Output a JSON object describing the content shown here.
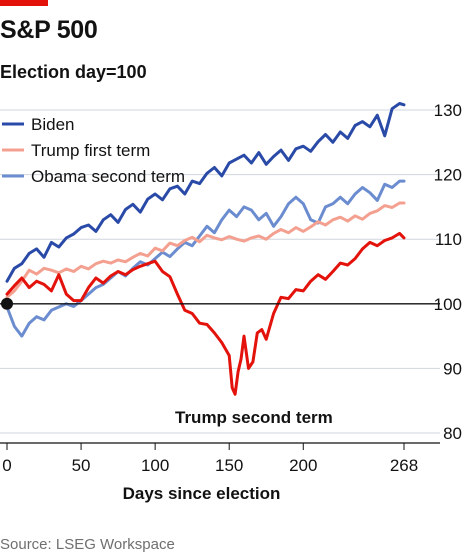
{
  "title": "S&P 500",
  "subtitle": "Election day=100",
  "source": "Source: LSEG Workspace",
  "colors": {
    "biden": "#2a4aa8",
    "trump_first": "#f4a090",
    "obama_second": "#6c8cd0",
    "trump_second": "#e3120b",
    "grid": "#cfd6dd",
    "baseline": "#121212",
    "brand_bar": "#e3120b"
  },
  "chart_data": {
    "type": "line",
    "xlabel": "Days since election",
    "ylabel": "",
    "xlim": [
      0,
      268
    ],
    "ylim": [
      80,
      132
    ],
    "x_ticks": [
      0,
      50,
      100,
      150,
      200,
      268
    ],
    "x_tick_labels": [
      "0",
      "50",
      "100",
      "150",
      "200",
      "268"
    ],
    "y_ticks": [
      80,
      90,
      100,
      110,
      120,
      130
    ],
    "y_tick_labels": [
      "80",
      "90",
      "100",
      "110",
      "120",
      "130"
    ],
    "y_axis_side": "right",
    "grid": "horizontal",
    "baseline": 100,
    "legend": "top-left",
    "annotations": [
      {
        "text": "Trump second term",
        "x": 155,
        "y": 88
      }
    ],
    "series": [
      {
        "name": "Biden",
        "color_key": "biden",
        "x": [
          0,
          5,
          10,
          15,
          20,
          25,
          30,
          35,
          40,
          45,
          50,
          55,
          60,
          65,
          70,
          75,
          80,
          85,
          90,
          95,
          100,
          105,
          110,
          115,
          120,
          125,
          130,
          135,
          140,
          145,
          150,
          155,
          160,
          165,
          170,
          175,
          180,
          185,
          190,
          195,
          200,
          205,
          210,
          215,
          220,
          225,
          230,
          235,
          240,
          245,
          250,
          255,
          260,
          265,
          268
        ],
        "y": [
          103.5,
          105.5,
          106.2,
          107.8,
          108.5,
          107.2,
          109.5,
          108.8,
          110.2,
          110.8,
          111.8,
          112.2,
          111.2,
          113.0,
          113.8,
          112.6,
          114.6,
          115.4,
          114.2,
          116.2,
          117.0,
          116.1,
          117.8,
          118.2,
          117.0,
          119.0,
          118.6,
          120.2,
          121.1,
          119.8,
          121.8,
          122.4,
          123.0,
          121.8,
          123.4,
          121.6,
          122.8,
          123.8,
          122.2,
          124.0,
          124.4,
          123.6,
          125.1,
          126.2,
          125.0,
          126.6,
          125.6,
          127.6,
          128.2,
          127.4,
          129.2,
          126.0,
          130.2,
          131.0,
          130.8
        ]
      },
      {
        "name": "Trump first term",
        "color_key": "trump_first",
        "x": [
          0,
          5,
          10,
          15,
          20,
          25,
          30,
          35,
          40,
          45,
          50,
          55,
          60,
          65,
          70,
          75,
          80,
          85,
          90,
          95,
          100,
          105,
          110,
          115,
          120,
          125,
          130,
          135,
          140,
          145,
          150,
          155,
          160,
          165,
          170,
          175,
          180,
          185,
          190,
          195,
          200,
          205,
          210,
          215,
          220,
          225,
          230,
          235,
          240,
          245,
          250,
          255,
          260,
          265,
          268
        ],
        "y": [
          101.0,
          102.0,
          103.5,
          105.2,
          104.6,
          105.5,
          105.2,
          104.8,
          105.4,
          105.0,
          105.8,
          105.4,
          106.2,
          106.6,
          106.3,
          106.8,
          106.5,
          107.2,
          107.8,
          107.4,
          108.6,
          108.2,
          109.4,
          109.0,
          109.8,
          110.3,
          109.6,
          110.6,
          110.2,
          109.9,
          110.4,
          110.0,
          109.7,
          110.2,
          110.5,
          110.0,
          110.9,
          111.5,
          111.0,
          111.8,
          111.2,
          111.9,
          112.7,
          112.2,
          113.0,
          113.4,
          112.8,
          113.6,
          113.1,
          114.0,
          114.4,
          115.2,
          114.9,
          115.6,
          115.6
        ]
      },
      {
        "name": "Obama second term",
        "color_key": "obama_second",
        "x": [
          0,
          5,
          10,
          15,
          20,
          25,
          30,
          35,
          40,
          45,
          50,
          55,
          60,
          65,
          70,
          75,
          80,
          85,
          90,
          95,
          100,
          105,
          110,
          115,
          120,
          125,
          130,
          135,
          140,
          145,
          150,
          155,
          160,
          165,
          170,
          175,
          180,
          185,
          190,
          195,
          200,
          205,
          210,
          215,
          220,
          225,
          230,
          235,
          240,
          245,
          250,
          255,
          260,
          265,
          268
        ],
        "y": [
          99.5,
          96.5,
          95.0,
          97.0,
          98.0,
          97.5,
          99.0,
          99.5,
          100.0,
          99.6,
          100.5,
          101.5,
          102.5,
          103.0,
          104.0,
          105.0,
          104.3,
          105.5,
          106.5,
          106.0,
          107.0,
          108.0,
          107.3,
          108.5,
          109.5,
          109.0,
          110.5,
          112.0,
          111.0,
          113.0,
          114.5,
          113.5,
          115.0,
          114.5,
          113.0,
          114.0,
          112.0,
          113.5,
          115.5,
          116.5,
          115.5,
          113.0,
          112.5,
          115.0,
          115.5,
          116.5,
          115.5,
          117.0,
          118.0,
          117.2,
          116.0,
          118.5,
          118.0,
          119.0,
          119.0
        ]
      },
      {
        "name": "Trump second term",
        "color_key": "trump_second",
        "x": [
          0,
          5,
          10,
          15,
          20,
          25,
          30,
          35,
          40,
          45,
          50,
          55,
          60,
          65,
          70,
          75,
          80,
          85,
          90,
          95,
          100,
          105,
          110,
          115,
          120,
          125,
          130,
          135,
          140,
          145,
          150,
          152,
          154,
          156,
          158,
          160,
          163,
          166,
          169,
          172,
          175,
          180,
          185,
          190,
          195,
          200,
          205,
          210,
          215,
          220,
          225,
          230,
          235,
          240,
          245,
          250,
          255,
          260,
          265,
          268
        ],
        "y": [
          101.5,
          102.8,
          104.0,
          102.5,
          103.5,
          103.0,
          102.0,
          104.5,
          101.5,
          100.5,
          100.5,
          102.5,
          104.0,
          103.2,
          104.3,
          105.0,
          104.5,
          105.3,
          105.8,
          106.2,
          106.6,
          105.0,
          104.2,
          101.5,
          99.0,
          98.5,
          97.0,
          96.8,
          95.5,
          94.0,
          92.0,
          87.0,
          86.0,
          89.5,
          91.5,
          95.0,
          90.0,
          91.0,
          95.5,
          96.0,
          94.5,
          98.5,
          101.0,
          100.8,
          102.2,
          102.0,
          103.5,
          104.5,
          103.8,
          105.0,
          106.3,
          106.0,
          107.0,
          108.5,
          109.5,
          109.0,
          109.8,
          110.2,
          110.9,
          110.2
        ]
      }
    ]
  }
}
